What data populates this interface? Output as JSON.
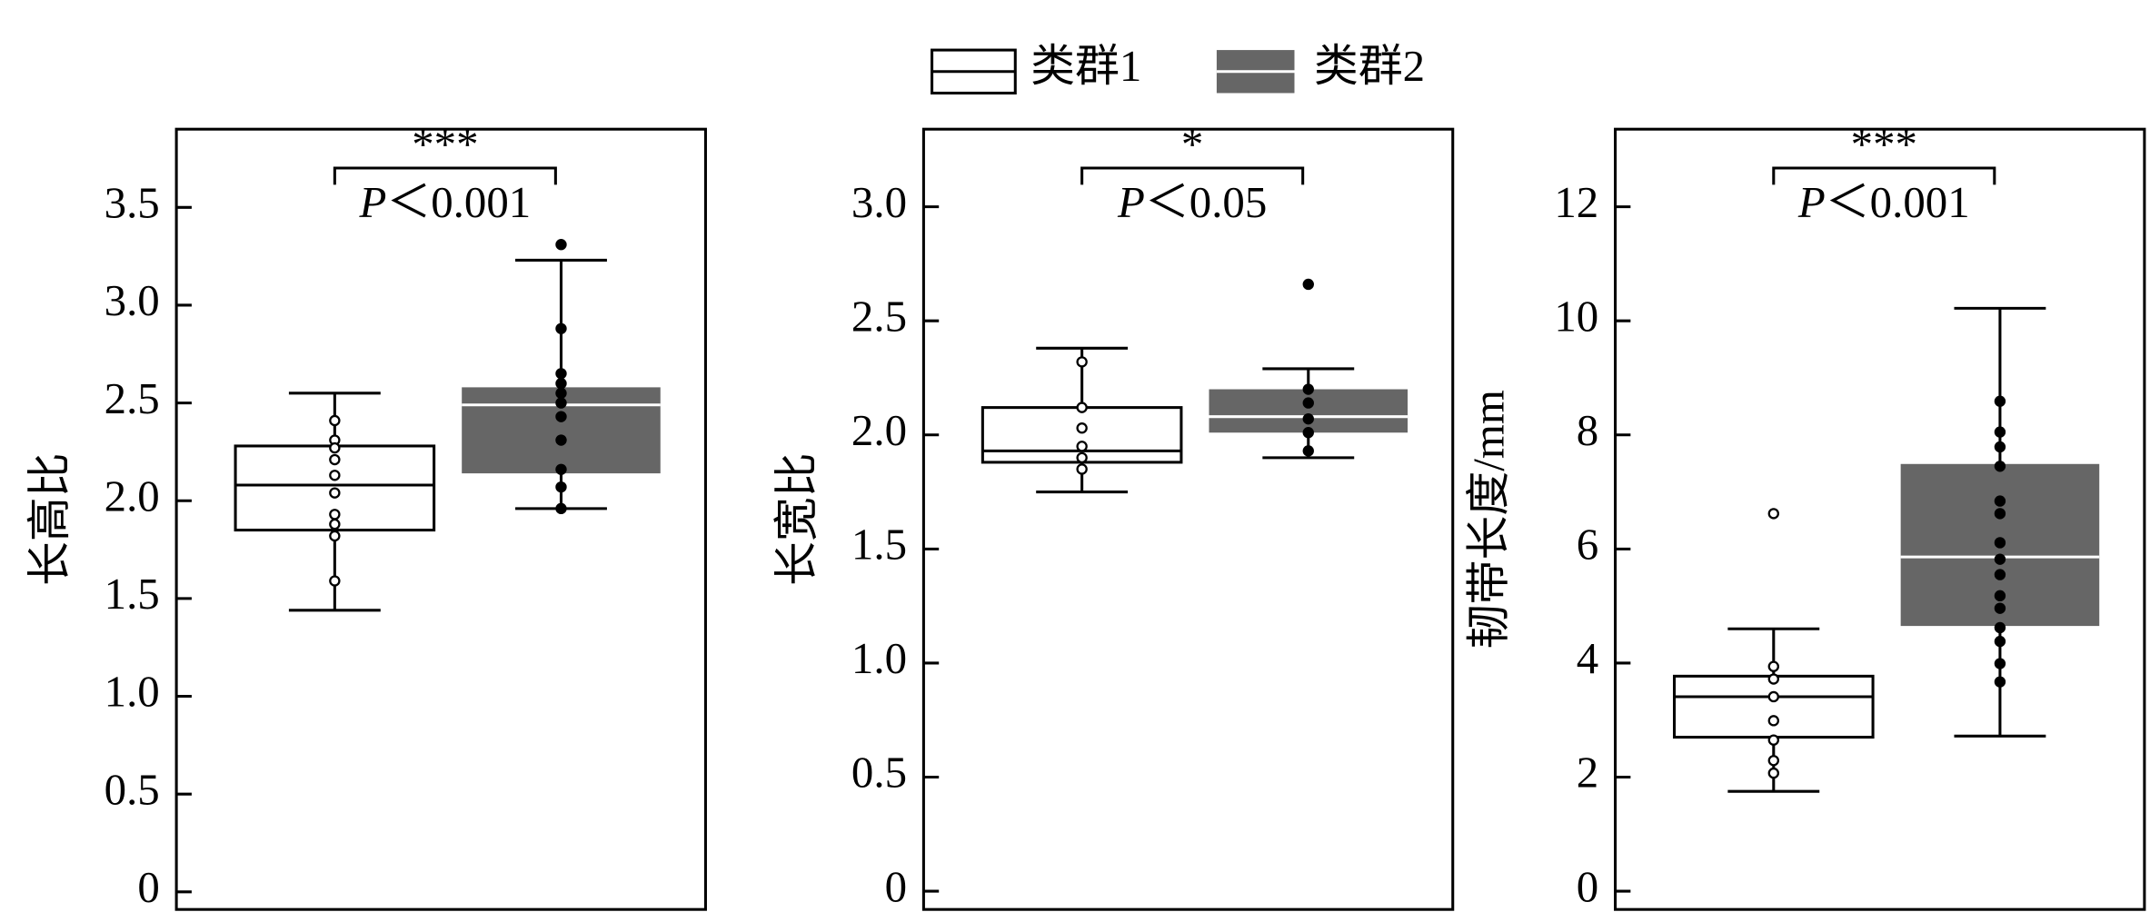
{
  "legend": [
    {
      "name": "类群1",
      "fill": "#ffffff",
      "median": "#000000",
      "point": "#ffffff"
    },
    {
      "name": "类群2",
      "fill": "#666666",
      "median": "#ffffff",
      "point": "#000000"
    }
  ],
  "chart_data": [
    {
      "type": "box",
      "ylabel": "长高比",
      "ylim": [
        -0.09,
        3.9
      ],
      "yticks": [
        0,
        0.5,
        {
          "value": 1,
          "label": "1.0"
        },
        1.5,
        {
          "value": 2,
          "label": "2.0"
        },
        2.5,
        {
          "value": 3,
          "label": "3.0"
        },
        3.5
      ],
      "annotation": {
        "stars": "***",
        "p_label": "P",
        "p_value": "＜0.001"
      },
      "series": [
        {
          "min": 1.44,
          "q1": 1.85,
          "median": 2.08,
          "q3": 2.28,
          "max": 2.55,
          "outliers": [],
          "points": [
            2.41,
            2.31,
            2.27,
            2.21,
            2.13,
            2.04,
            1.93,
            1.88,
            1.82,
            1.59
          ]
        },
        {
          "min": 1.96,
          "q1": 2.14,
          "median": 2.49,
          "q3": 2.58,
          "max": 3.23,
          "outliers": [
            3.31
          ],
          "points": [
            2.88,
            2.65,
            2.6,
            2.55,
            2.5,
            2.43,
            2.31,
            2.16,
            2.07,
            1.96
          ]
        }
      ]
    },
    {
      "type": "box",
      "ylabel": "长宽比",
      "ylim": [
        -0.08,
        3.34
      ],
      "yticks": [
        0,
        0.5,
        {
          "value": 1,
          "label": "1.0"
        },
        1.5,
        {
          "value": 2,
          "label": "2.0"
        },
        2.5,
        {
          "value": 3,
          "label": "3.0"
        }
      ],
      "annotation": {
        "stars": "*",
        "p_label": "P",
        "p_value": "＜0.05"
      },
      "series": [
        {
          "min": 1.75,
          "q1": 1.88,
          "median": 1.93,
          "q3": 2.12,
          "max": 2.38,
          "outliers": [],
          "points": [
            2.32,
            2.12,
            2.03,
            1.95,
            1.9,
            1.85
          ]
        },
        {
          "min": 1.9,
          "q1": 2.01,
          "median": 2.08,
          "q3": 2.2,
          "max": 2.29,
          "outliers": [
            2.66
          ],
          "points": [
            2.2,
            2.14,
            2.07,
            2.01,
            1.93
          ]
        }
      ]
    },
    {
      "type": "box",
      "ylabel": "韧带长度/mm",
      "ylim": [
        -0.32,
        13.36
      ],
      "yticks": [
        0,
        2,
        4,
        6,
        8,
        10,
        12
      ],
      "annotation": {
        "stars": "***",
        "p_label": "P",
        "p_value": "＜0.001"
      },
      "series": [
        {
          "min": 1.75,
          "q1": 2.7,
          "median": 3.41,
          "q3": 3.77,
          "max": 4.6,
          "outliers": [
            6.62
          ],
          "points": [
            3.94,
            3.72,
            3.41,
            2.99,
            2.65,
            2.29,
            2.07
          ]
        },
        {
          "min": 2.72,
          "q1": 4.65,
          "median": 5.86,
          "q3": 7.49,
          "max": 10.22,
          "outliers": [],
          "points": [
            8.59,
            8.05,
            7.79,
            7.45,
            6.84,
            6.62,
            6.11,
            5.82,
            5.55,
            5.18,
            4.96,
            4.62,
            4.38,
            3.99,
            3.67
          ]
        }
      ]
    }
  ]
}
